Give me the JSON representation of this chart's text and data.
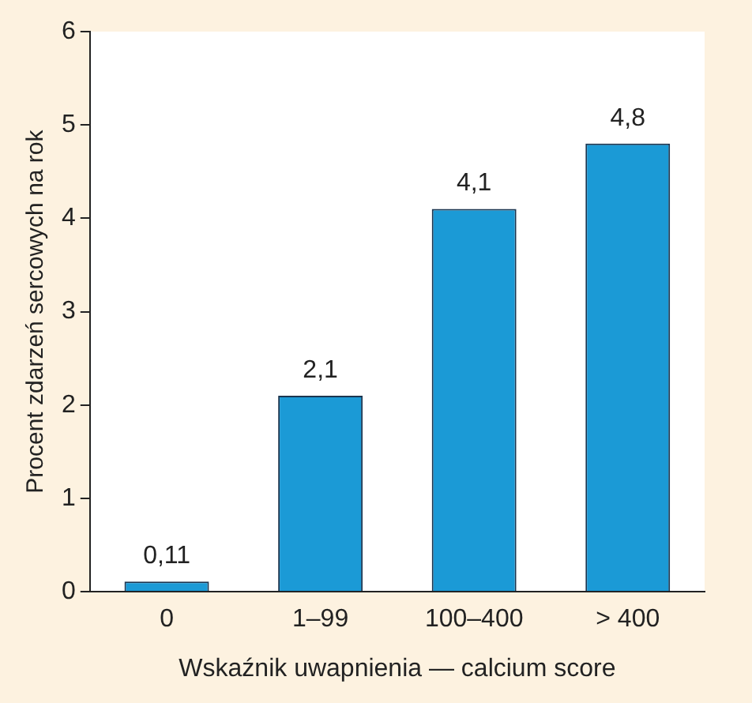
{
  "chart_data": {
    "type": "bar",
    "xlabel": "Wskaźnik uwapnienia — calcium score",
    "ylabel": "Procent zdarzeń sercowych na rok",
    "categories": [
      "0",
      "1–99",
      "100–400",
      "> 400"
    ],
    "values": [
      0.11,
      2.1,
      4.1,
      4.8
    ],
    "value_labels": [
      "0,11",
      "2,1",
      "4,1",
      "4,8"
    ],
    "color": "#1b9ad6",
    "ylim": [
      0,
      6
    ],
    "yticks": [
      0,
      1,
      2,
      3,
      4,
      5,
      6
    ],
    "grid": false,
    "legend": false
  }
}
